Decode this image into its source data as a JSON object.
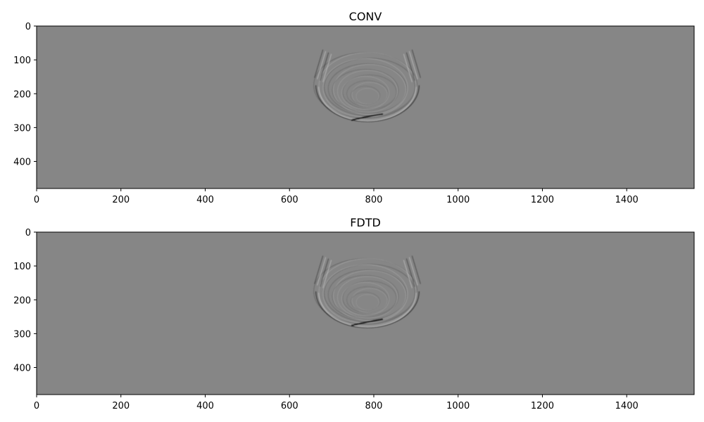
{
  "chart_data": [
    {
      "type": "heatmap",
      "title": "CONV",
      "colormap": "gray",
      "xlim": [
        0,
        1560
      ],
      "ylim": [
        480,
        0
      ],
      "x_ticks": [
        0,
        200,
        400,
        600,
        800,
        1000,
        1200,
        1400
      ],
      "y_ticks": [
        0,
        100,
        200,
        300,
        400
      ],
      "background_color": "#868686",
      "feature": {
        "description": "seismic wavefield arcs",
        "x_range": [
          665,
          910
        ],
        "y_range": [
          70,
          285
        ],
        "center": [
          785,
          175
        ],
        "bright_streak": [
          780,
          272
        ]
      }
    },
    {
      "type": "heatmap",
      "title": "FDTD",
      "colormap": "gray",
      "xlim": [
        0,
        1560
      ],
      "ylim": [
        480,
        0
      ],
      "x_ticks": [
        0,
        200,
        400,
        600,
        800,
        1000,
        1200,
        1400
      ],
      "y_ticks": [
        0,
        100,
        200,
        300,
        400
      ],
      "background_color": "#868686",
      "feature": {
        "description": "seismic wavefield arcs",
        "x_range": [
          665,
          910
        ],
        "y_range": [
          70,
          285
        ],
        "center": [
          785,
          175
        ],
        "bright_streak": [
          780,
          270
        ]
      }
    }
  ]
}
